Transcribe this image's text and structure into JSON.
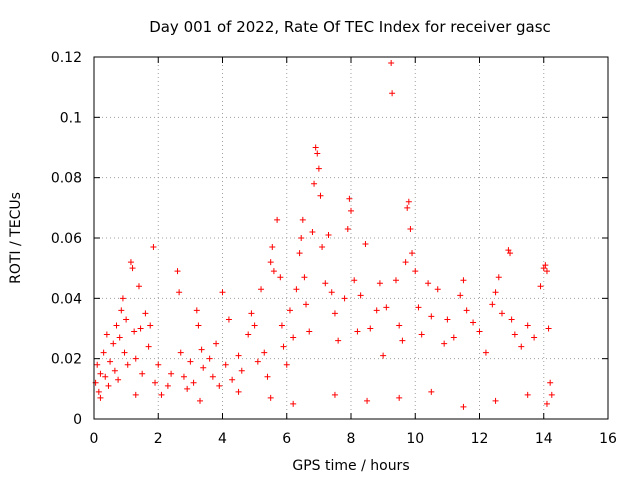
{
  "chart_data": {
    "type": "scatter",
    "title": "Day 001 of 2022, Rate Of TEC Index for receiver gasc",
    "xlabel": "GPS time / hours",
    "ylabel": "ROTI / TECUs",
    "xlim": [
      0,
      16
    ],
    "ylim": [
      0,
      0.12
    ],
    "x_ticks": [
      0,
      2,
      4,
      6,
      8,
      10,
      12,
      14,
      16
    ],
    "x_tick_labels": [
      "0",
      "2",
      "4",
      "6",
      "8",
      "10",
      "12",
      "14",
      "16"
    ],
    "y_ticks": [
      0,
      0.02,
      0.04,
      0.06,
      0.08,
      0.1,
      0.12
    ],
    "y_tick_labels": [
      "0",
      "0.02",
      "0.04",
      "0.06",
      "0.08",
      "0.1",
      "0.12"
    ],
    "grid": true,
    "marker": "+",
    "color": "#ff0000",
    "series": [
      {
        "name": "ROTI",
        "points": [
          [
            0.05,
            0.012
          ],
          [
            0.1,
            0.018
          ],
          [
            0.15,
            0.009
          ],
          [
            0.2,
            0.015
          ],
          [
            0.3,
            0.022
          ],
          [
            0.35,
            0.014
          ],
          [
            0.4,
            0.028
          ],
          [
            0.45,
            0.011
          ],
          [
            0.5,
            0.019
          ],
          [
            0.6,
            0.025
          ],
          [
            0.65,
            0.016
          ],
          [
            0.7,
            0.031
          ],
          [
            0.75,
            0.013
          ],
          [
            0.8,
            0.027
          ],
          [
            0.85,
            0.036
          ],
          [
            0.9,
            0.04
          ],
          [
            0.95,
            0.022
          ],
          [
            1.0,
            0.033
          ],
          [
            1.05,
            0.018
          ],
          [
            1.15,
            0.052
          ],
          [
            1.2,
            0.05
          ],
          [
            1.25,
            0.029
          ],
          [
            1.3,
            0.02
          ],
          [
            1.4,
            0.044
          ],
          [
            1.45,
            0.03
          ],
          [
            1.5,
            0.015
          ],
          [
            1.6,
            0.035
          ],
          [
            1.7,
            0.024
          ],
          [
            1.75,
            0.031
          ],
          [
            1.85,
            0.057
          ],
          [
            1.9,
            0.012
          ],
          [
            2.0,
            0.018
          ],
          [
            2.1,
            0.008
          ],
          [
            2.3,
            0.011
          ],
          [
            2.4,
            0.015
          ],
          [
            2.6,
            0.049
          ],
          [
            2.65,
            0.042
          ],
          [
            2.7,
            0.022
          ],
          [
            2.8,
            0.014
          ],
          [
            2.9,
            0.01
          ],
          [
            3.0,
            0.019
          ],
          [
            3.1,
            0.012
          ],
          [
            3.2,
            0.036
          ],
          [
            3.25,
            0.031
          ],
          [
            3.35,
            0.023
          ],
          [
            3.4,
            0.017
          ],
          [
            3.6,
            0.02
          ],
          [
            3.7,
            0.014
          ],
          [
            3.8,
            0.025
          ],
          [
            3.9,
            0.011
          ],
          [
            4.0,
            0.042
          ],
          [
            4.1,
            0.018
          ],
          [
            4.2,
            0.033
          ],
          [
            4.3,
            0.013
          ],
          [
            4.5,
            0.021
          ],
          [
            4.6,
            0.016
          ],
          [
            4.8,
            0.028
          ],
          [
            4.9,
            0.035
          ],
          [
            5.0,
            0.031
          ],
          [
            5.1,
            0.019
          ],
          [
            5.2,
            0.043
          ],
          [
            5.3,
            0.022
          ],
          [
            5.4,
            0.014
          ],
          [
            5.5,
            0.052
          ],
          [
            5.55,
            0.057
          ],
          [
            5.6,
            0.049
          ],
          [
            5.7,
            0.066
          ],
          [
            5.8,
            0.047
          ],
          [
            5.85,
            0.031
          ],
          [
            5.9,
            0.024
          ],
          [
            6.0,
            0.018
          ],
          [
            6.1,
            0.036
          ],
          [
            6.2,
            0.027
          ],
          [
            6.3,
            0.043
          ],
          [
            6.4,
            0.055
          ],
          [
            6.45,
            0.06
          ],
          [
            6.5,
            0.066
          ],
          [
            6.55,
            0.047
          ],
          [
            6.6,
            0.038
          ],
          [
            6.7,
            0.029
          ],
          [
            6.8,
            0.062
          ],
          [
            6.85,
            0.078
          ],
          [
            6.9,
            0.09
          ],
          [
            6.95,
            0.088
          ],
          [
            7.0,
            0.083
          ],
          [
            7.05,
            0.074
          ],
          [
            7.1,
            0.057
          ],
          [
            7.2,
            0.045
          ],
          [
            7.3,
            0.061
          ],
          [
            7.4,
            0.042
          ],
          [
            7.5,
            0.035
          ],
          [
            7.6,
            0.026
          ],
          [
            7.8,
            0.04
          ],
          [
            7.9,
            0.063
          ],
          [
            7.95,
            0.073
          ],
          [
            8.0,
            0.069
          ],
          [
            8.1,
            0.046
          ],
          [
            8.2,
            0.029
          ],
          [
            8.3,
            0.041
          ],
          [
            8.45,
            0.058
          ],
          [
            8.6,
            0.03
          ],
          [
            8.8,
            0.036
          ],
          [
            8.9,
            0.045
          ],
          [
            9.0,
            0.021
          ],
          [
            9.1,
            0.037
          ],
          [
            9.25,
            0.118
          ],
          [
            9.28,
            0.108
          ],
          [
            9.4,
            0.046
          ],
          [
            9.5,
            0.031
          ],
          [
            9.6,
            0.026
          ],
          [
            9.7,
            0.052
          ],
          [
            9.75,
            0.07
          ],
          [
            9.8,
            0.072
          ],
          [
            9.85,
            0.063
          ],
          [
            9.9,
            0.055
          ],
          [
            10.0,
            0.049
          ],
          [
            10.1,
            0.037
          ],
          [
            10.2,
            0.028
          ],
          [
            10.4,
            0.045
          ],
          [
            10.5,
            0.034
          ],
          [
            10.7,
            0.043
          ],
          [
            10.9,
            0.025
          ],
          [
            11.0,
            0.033
          ],
          [
            11.2,
            0.027
          ],
          [
            11.4,
            0.041
          ],
          [
            11.5,
            0.046
          ],
          [
            11.6,
            0.036
          ],
          [
            11.8,
            0.032
          ],
          [
            12.0,
            0.029
          ],
          [
            12.2,
            0.022
          ],
          [
            12.4,
            0.038
          ],
          [
            12.5,
            0.042
          ],
          [
            12.6,
            0.047
          ],
          [
            12.7,
            0.035
          ],
          [
            12.9,
            0.056
          ],
          [
            12.95,
            0.055
          ],
          [
            13.0,
            0.033
          ],
          [
            13.1,
            0.028
          ],
          [
            13.3,
            0.024
          ],
          [
            13.5,
            0.031
          ],
          [
            13.7,
            0.027
          ],
          [
            13.9,
            0.044
          ],
          [
            14.0,
            0.05
          ],
          [
            14.05,
            0.051
          ],
          [
            14.1,
            0.049
          ],
          [
            14.15,
            0.03
          ],
          [
            14.2,
            0.012
          ],
          [
            14.25,
            0.008
          ],
          [
            0.2,
            0.007
          ],
          [
            1.3,
            0.008
          ],
          [
            3.3,
            0.006
          ],
          [
            4.5,
            0.009
          ],
          [
            5.5,
            0.007
          ],
          [
            6.2,
            0.005
          ],
          [
            7.5,
            0.008
          ],
          [
            8.5,
            0.006
          ],
          [
            9.5,
            0.007
          ],
          [
            10.5,
            0.009
          ],
          [
            11.5,
            0.004
          ],
          [
            12.5,
            0.006
          ],
          [
            13.5,
            0.008
          ],
          [
            14.1,
            0.005
          ]
        ]
      }
    ]
  }
}
